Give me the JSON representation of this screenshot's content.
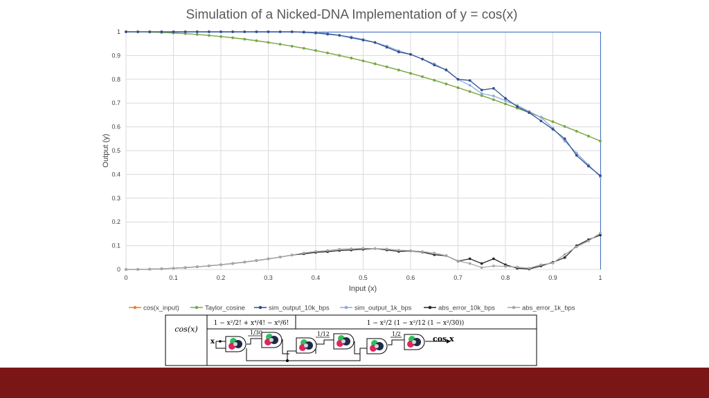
{
  "chart_data": {
    "type": "line",
    "title": "Simulation of a Nicked-DNA Implementation of y = cos(x)",
    "xlabel": "Input (x)",
    "ylabel": "Output (y)",
    "xlim": [
      0,
      1
    ],
    "ylim": [
      0,
      1
    ],
    "x_ticks": [
      "0",
      "0.1",
      "0.2",
      "0.3",
      "0.4",
      "0.5",
      "0.6",
      "0.7",
      "0.8",
      "0.9",
      "1"
    ],
    "y_ticks": [
      "0",
      "0.1",
      "0.2",
      "0.3",
      "0.4",
      "0.5",
      "0.6",
      "0.7",
      "0.8",
      "0.9",
      "1"
    ],
    "grid": true,
    "legend_position": "bottom",
    "x": [
      0,
      0.025,
      0.05,
      0.075,
      0.1,
      0.125,
      0.15,
      0.175,
      0.2,
      0.225,
      0.25,
      0.275,
      0.3,
      0.325,
      0.35,
      0.375,
      0.4,
      0.425,
      0.45,
      0.475,
      0.5,
      0.525,
      0.55,
      0.575,
      0.6,
      0.625,
      0.65,
      0.675,
      0.7,
      0.725,
      0.75,
      0.775,
      0.8,
      0.825,
      0.85,
      0.875,
      0.9,
      0.925,
      0.95,
      0.975,
      1
    ],
    "series": [
      {
        "name": "cos(x_input)",
        "color": "#ed7d31",
        "marker": "circle",
        "values": [
          1,
          0.9997,
          0.9988,
          0.9972,
          0.995,
          0.9922,
          0.9888,
          0.9847,
          0.9801,
          0.9748,
          0.9689,
          0.9624,
          0.9553,
          0.9477,
          0.9394,
          0.9305,
          0.9211,
          0.911,
          0.9004,
          0.8893,
          0.8776,
          0.8653,
          0.8525,
          0.8392,
          0.8253,
          0.8109,
          0.7961,
          0.7807,
          0.7648,
          0.7485,
          0.7317,
          0.7144,
          0.6967,
          0.6785,
          0.66,
          0.641,
          0.6216,
          0.6018,
          0.5817,
          0.5612,
          0.5403
        ]
      },
      {
        "name": "Taylor_cosine",
        "color": "#70ad47",
        "marker": "circle",
        "values": [
          1,
          0.9997,
          0.9988,
          0.9972,
          0.995,
          0.9922,
          0.9888,
          0.9847,
          0.9801,
          0.9748,
          0.9689,
          0.9624,
          0.9553,
          0.9477,
          0.9394,
          0.9305,
          0.9211,
          0.911,
          0.9004,
          0.8893,
          0.8776,
          0.8653,
          0.8525,
          0.8392,
          0.8253,
          0.8109,
          0.7961,
          0.7807,
          0.7648,
          0.7485,
          0.7317,
          0.7144,
          0.6967,
          0.6785,
          0.66,
          0.641,
          0.6216,
          0.6018,
          0.5817,
          0.5612,
          0.5403
        ]
      },
      {
        "name": "sim_output_10k_bps",
        "color": "#2f4f8f",
        "marker": "circle",
        "values": [
          1,
          1,
          1,
          1,
          1,
          1,
          1,
          1,
          1,
          1,
          1,
          1,
          1,
          1,
          1,
          0.998,
          0.995,
          0.99,
          0.985,
          0.975,
          0.965,
          0.955,
          0.935,
          0.915,
          0.905,
          0.885,
          0.86,
          0.84,
          0.8,
          0.795,
          0.755,
          0.762,
          0.72,
          0.685,
          0.66,
          0.625,
          0.59,
          0.55,
          0.48,
          0.435,
          0.395
        ]
      },
      {
        "name": "sim_output_1k_bps",
        "color": "#8faadc",
        "marker": "circle",
        "values": [
          1,
          1,
          1,
          1,
          1,
          1,
          1,
          1,
          1,
          1,
          1,
          1,
          1,
          1,
          1,
          1,
          0.998,
          0.993,
          0.985,
          0.978,
          0.968,
          0.955,
          0.94,
          0.92,
          0.905,
          0.885,
          0.865,
          0.838,
          0.8,
          0.775,
          0.74,
          0.73,
          0.71,
          0.69,
          0.665,
          0.64,
          0.595,
          0.54,
          0.49,
          0.44,
          0.39
        ]
      },
      {
        "name": "abs_error_10k_bps",
        "color": "#262626",
        "marker": "circle",
        "values": [
          0,
          0.0003,
          0.0012,
          0.0028,
          0.005,
          0.0078,
          0.0112,
          0.0153,
          0.0199,
          0.0252,
          0.0311,
          0.0376,
          0.0447,
          0.0523,
          0.0606,
          0.066,
          0.072,
          0.075,
          0.08,
          0.082,
          0.085,
          0.088,
          0.082,
          0.076,
          0.078,
          0.073,
          0.062,
          0.058,
          0.035,
          0.045,
          0.025,
          0.045,
          0.02,
          0.005,
          0.002,
          0.015,
          0.03,
          0.05,
          0.1,
          0.125,
          0.145
        ]
      },
      {
        "name": "abs_error_1k_bps",
        "color": "#a6a6a6",
        "marker": "circle",
        "values": [
          0,
          0.0003,
          0.0012,
          0.0028,
          0.005,
          0.0078,
          0.0112,
          0.0153,
          0.0199,
          0.0252,
          0.0311,
          0.0376,
          0.0447,
          0.0523,
          0.0606,
          0.0695,
          0.076,
          0.08,
          0.085,
          0.087,
          0.089,
          0.088,
          0.086,
          0.081,
          0.079,
          0.075,
          0.069,
          0.058,
          0.036,
          0.025,
          0.008,
          0.015,
          0.013,
          0.01,
          0.005,
          0.02,
          0.027,
          0.063,
          0.095,
          0.12,
          0.153
        ]
      }
    ]
  },
  "circuit": {
    "row_label": "cos(x)",
    "formula_left": "1 − x²/2! + x⁴/4! − x⁶/6!",
    "formula_right": "1 − x²/2 (1 − x²/12 (1 − x²/30))",
    "coef_1": "1/30",
    "coef_2": "1/12",
    "coef_3": "1/2",
    "input_label": "x",
    "output_label": "cos x"
  }
}
